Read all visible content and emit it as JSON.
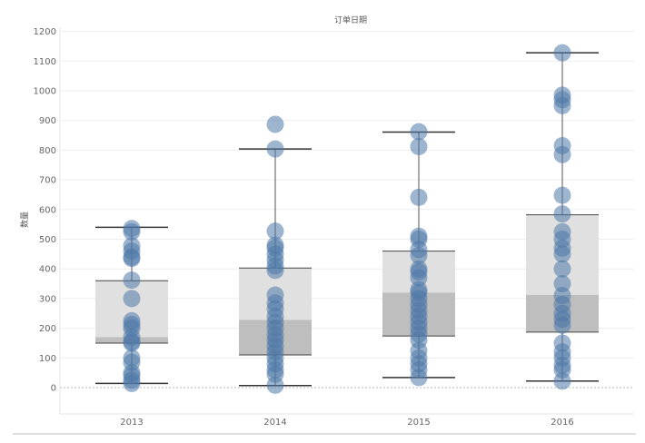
{
  "chart_data": {
    "type": "box",
    "title": "订单日期",
    "ylabel": "数量",
    "xlabel": "",
    "ylim": [
      -90,
      1220
    ],
    "yticks": [
      0,
      100,
      200,
      300,
      400,
      500,
      600,
      700,
      800,
      900,
      1000,
      1100,
      1200
    ],
    "grid": true,
    "categories": [
      "2013",
      "2014",
      "2015",
      "2016"
    ],
    "boxes": [
      {
        "category": "2013",
        "whisker_low": 14,
        "q1": 150,
        "median": 170,
        "q3": 360,
        "whisker_high": 540
      },
      {
        "category": "2014",
        "whisker_low": 7,
        "q1": 110,
        "median": 228,
        "q3": 403,
        "whisker_high": 804
      },
      {
        "category": "2015",
        "whisker_low": 34,
        "q1": 174,
        "median": 320,
        "q3": 460,
        "whisker_high": 861
      },
      {
        "category": "2016",
        "whisker_low": 22,
        "q1": 187,
        "median": 312,
        "q3": 582,
        "whisker_high": 1128
      }
    ],
    "points": [
      {
        "category": "2013",
        "values": [
          536,
          525,
          478,
          460,
          440,
          435,
          362,
          300,
          225,
          212,
          200,
          170,
          155,
          150,
          100,
          85,
          50,
          40,
          25,
          14
        ]
      },
      {
        "category": "2014",
        "values": [
          887,
          804,
          527,
          480,
          470,
          450,
          430,
          410,
          395,
          312,
          285,
          265,
          240,
          220,
          200,
          178,
          160,
          140,
          120,
          100,
          80,
          60,
          45,
          8
        ]
      },
      {
        "category": "2015",
        "values": [
          862,
          812,
          641,
          510,
          500,
          465,
          445,
          400,
          390,
          370,
          330,
          320,
          300,
          280,
          260,
          240,
          220,
          200,
          180,
          160,
          125,
          100,
          80,
          60,
          34
        ]
      },
      {
        "category": "2016",
        "values": [
          1128,
          985,
          970,
          950,
          815,
          785,
          648,
          585,
          525,
          500,
          470,
          450,
          400,
          350,
          310,
          280,
          250,
          230,
          210,
          150,
          120,
          100,
          75,
          60,
          22
        ]
      }
    ],
    "colors": {
      "point": "#4e79a7",
      "box_upper": "#e0e0e0",
      "box_lower": "#bebebe",
      "whisker": "#333333",
      "grid": "#eeeeee"
    }
  }
}
